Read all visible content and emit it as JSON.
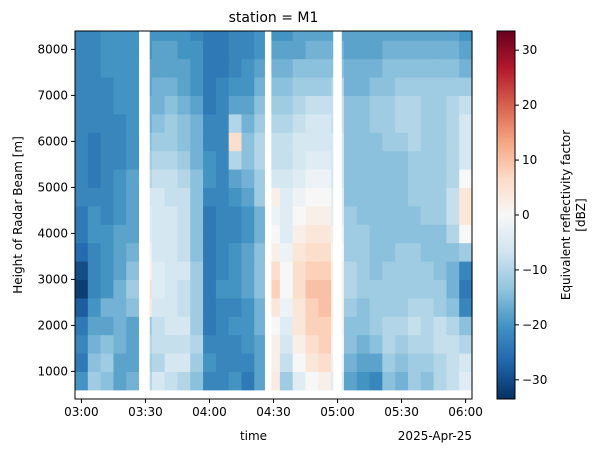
{
  "chart_data": {
    "type": "heatmap",
    "title": "station = M1",
    "xlabel": "time",
    "ylabel": "Height of Radar Beam [m]",
    "x_offset_label": "2025-Apr-25",
    "x_ticks": [
      "03:00",
      "03:30",
      "04:00",
      "04:30",
      "05:00",
      "05:30",
      "06:00"
    ],
    "x_tick_minutes": [
      0,
      30,
      60,
      90,
      120,
      150,
      180
    ],
    "xlim_minutes": [
      -3,
      183
    ],
    "y_ticks": [
      1000,
      2000,
      3000,
      4000,
      5000,
      6000,
      7000,
      8000
    ],
    "ylim": [
      400,
      8400
    ],
    "colorbar": {
      "label_line1": "Equivalent reflectivity factor",
      "label_line2": "[dBZ]",
      "range": [
        -33.5,
        33.5
      ],
      "ticks": [
        -30,
        -20,
        -10,
        0,
        10,
        20,
        30
      ],
      "cmap": [
        "#053061",
        "#2166ac",
        "#4393c3",
        "#92c5de",
        "#d1e5f0",
        "#f7f7f7",
        "#fddbc7",
        "#f4a582",
        "#d6604d",
        "#b2182b",
        "#67001f"
      ]
    },
    "time_minutes": [
      0,
      6,
      12,
      18,
      24,
      30,
      36,
      42,
      48,
      54,
      60,
      66,
      72,
      78,
      84,
      90,
      96,
      102,
      108,
      114,
      120,
      126,
      132,
      138,
      144,
      150,
      156,
      162,
      168,
      174,
      180
    ],
    "heights_m": [
      800,
      1200,
      1600,
      2000,
      2400,
      2800,
      3200,
      3600,
      4000,
      4400,
      4800,
      5200,
      5600,
      6000,
      6400,
      6800,
      7200,
      7600,
      8000,
      8400
    ],
    "gaps": [
      {
        "from_minute": 27,
        "to_minute": 32
      },
      {
        "from_minute": 86,
        "to_minute": 89
      },
      {
        "from_minute": 118,
        "to_minute": 122
      }
    ],
    "dbz_grid": [
      [
        -20,
        -12,
        -14,
        -18,
        -16,
        -10,
        -6,
        -8,
        -10,
        -14,
        -22,
        -22,
        -20,
        -24,
        -18,
        3,
        -12,
        -4,
        0,
        2,
        -4,
        -18,
        -20,
        -22,
        -14,
        -16,
        -12,
        -14,
        -10,
        -8,
        -4
      ],
      [
        -24,
        -14,
        -12,
        -18,
        -18,
        -12,
        -10,
        -6,
        -6,
        -12,
        -20,
        -22,
        -22,
        -22,
        -18,
        2,
        -8,
        0,
        4,
        6,
        -2,
        -16,
        -18,
        -18,
        -12,
        -14,
        -12,
        -12,
        -10,
        -8,
        -6
      ],
      [
        -22,
        -16,
        -14,
        -16,
        -18,
        -10,
        -8,
        -8,
        -8,
        -10,
        -22,
        -22,
        -22,
        -20,
        -18,
        2,
        -6,
        2,
        6,
        8,
        0,
        -14,
        -16,
        -14,
        -10,
        -12,
        -10,
        -10,
        -8,
        -8,
        -10
      ],
      [
        -24,
        -18,
        -18,
        -16,
        -18,
        -12,
        -8,
        -6,
        -6,
        -12,
        -24,
        -22,
        -20,
        -20,
        -16,
        0,
        -4,
        4,
        8,
        8,
        2,
        -14,
        -14,
        -12,
        -10,
        -10,
        -8,
        -10,
        -8,
        -10,
        -14
      ],
      [
        -28,
        -20,
        -16,
        -16,
        -14,
        4,
        -6,
        -6,
        -8,
        -12,
        -24,
        -22,
        -22,
        -20,
        -16,
        4,
        -2,
        4,
        8,
        10,
        2,
        -12,
        -14,
        -12,
        -12,
        -12,
        -10,
        -10,
        -12,
        -14,
        -22
      ],
      [
        -32,
        -22,
        -20,
        -16,
        -12,
        6,
        -4,
        -6,
        -8,
        -12,
        -24,
        -20,
        -20,
        -18,
        -14,
        8,
        0,
        6,
        10,
        10,
        2,
        -10,
        -12,
        -12,
        -12,
        -12,
        -12,
        -12,
        -12,
        -16,
        -24
      ],
      [
        -30,
        -22,
        -20,
        -18,
        -14,
        2,
        -4,
        -6,
        -6,
        -12,
        -24,
        -22,
        -20,
        -18,
        -14,
        6,
        0,
        6,
        8,
        8,
        2,
        -10,
        -12,
        -14,
        -12,
        -12,
        -12,
        -12,
        -14,
        -16,
        -22
      ],
      [
        -26,
        -22,
        -20,
        -18,
        -16,
        -2,
        -6,
        -6,
        -8,
        -14,
        -24,
        -22,
        -20,
        -18,
        -14,
        2,
        -2,
        4,
        6,
        6,
        0,
        -12,
        -12,
        -14,
        -14,
        -12,
        -12,
        -14,
        -14,
        -14,
        -12
      ],
      [
        -24,
        -20,
        -20,
        -18,
        -18,
        -4,
        -6,
        -6,
        -8,
        -14,
        -24,
        -22,
        -22,
        -20,
        -16,
        0,
        -4,
        2,
        4,
        4,
        -2,
        -12,
        -12,
        -14,
        -14,
        -14,
        -14,
        -14,
        -14,
        -10,
        0
      ],
      [
        -24,
        -20,
        -22,
        -20,
        -18,
        -4,
        -6,
        -6,
        -8,
        -14,
        -24,
        -22,
        -22,
        -20,
        -16,
        -2,
        -4,
        0,
        2,
        2,
        -4,
        -12,
        -14,
        -14,
        -14,
        -14,
        -14,
        -12,
        -12,
        -8,
        4
      ],
      [
        -22,
        -22,
        -22,
        -20,
        -18,
        -6,
        -6,
        -8,
        -8,
        -14,
        -22,
        -22,
        -20,
        -18,
        -12,
        2,
        -4,
        -2,
        0,
        0,
        -4,
        -14,
        -14,
        -14,
        -14,
        -14,
        -12,
        -12,
        -12,
        -8,
        4
      ],
      [
        -22,
        -24,
        -22,
        -20,
        -18,
        -10,
        -8,
        -8,
        -10,
        -14,
        -20,
        -22,
        -18,
        -16,
        -12,
        -6,
        -6,
        -4,
        -2,
        -2,
        -6,
        -14,
        -14,
        -14,
        -14,
        -14,
        -12,
        -12,
        -12,
        -10,
        0
      ],
      [
        -22,
        -24,
        -22,
        -22,
        -20,
        -12,
        -10,
        -10,
        -12,
        -16,
        -20,
        -22,
        -10,
        -14,
        -10,
        -8,
        -8,
        -6,
        -4,
        -4,
        -6,
        -14,
        -14,
        -14,
        -14,
        -14,
        -12,
        -12,
        -12,
        -10,
        -6
      ],
      [
        -22,
        -24,
        -22,
        -22,
        -20,
        -14,
        -12,
        -12,
        -14,
        -16,
        -22,
        -22,
        6,
        -14,
        -10,
        -8,
        -8,
        -6,
        -6,
        -6,
        -6,
        -14,
        -14,
        -14,
        -12,
        -12,
        -10,
        -12,
        -12,
        -10,
        -6
      ],
      [
        -22,
        -22,
        -22,
        -22,
        -20,
        -16,
        -14,
        -12,
        -14,
        -16,
        -22,
        -22,
        -10,
        -16,
        -12,
        -10,
        -10,
        -8,
        -6,
        -6,
        -8,
        -14,
        -14,
        -12,
        -12,
        -10,
        -10,
        -12,
        -12,
        -10,
        -6
      ],
      [
        -22,
        -22,
        -22,
        -20,
        -20,
        -16,
        -16,
        -14,
        -16,
        -18,
        -24,
        -22,
        -18,
        -18,
        -14,
        -12,
        -12,
        -10,
        -8,
        -8,
        -8,
        -14,
        -14,
        -12,
        -12,
        -10,
        -10,
        -12,
        -12,
        -10,
        -8
      ],
      [
        -22,
        -22,
        -22,
        -20,
        -20,
        -18,
        -16,
        -16,
        -18,
        -20,
        -24,
        -22,
        -20,
        -20,
        -16,
        -14,
        -14,
        -12,
        -12,
        -12,
        -10,
        -16,
        -16,
        -14,
        -14,
        -12,
        -12,
        -12,
        -12,
        -12,
        -12
      ],
      [
        -22,
        -22,
        -20,
        -20,
        -20,
        -18,
        -18,
        -18,
        -18,
        -20,
        -24,
        -24,
        -22,
        -20,
        -18,
        -16,
        -16,
        -14,
        -14,
        -14,
        -14,
        -16,
        -16,
        -16,
        -14,
        -14,
        -14,
        -14,
        -14,
        -14,
        -16
      ],
      [
        -22,
        -22,
        -20,
        -20,
        -20,
        -20,
        -18,
        -18,
        -20,
        -20,
        -24,
        -24,
        -22,
        -22,
        -20,
        -18,
        -18,
        -18,
        -16,
        -16,
        -16,
        -18,
        -18,
        -18,
        -16,
        -16,
        -16,
        -16,
        -16,
        -16,
        -18
      ],
      [
        -22,
        -22,
        -20,
        -20,
        -20,
        -20,
        -20,
        -20,
        -20,
        -22,
        -24,
        -24,
        -22,
        -22,
        -20,
        -20,
        -20,
        -18,
        -18,
        -18,
        -18,
        -18,
        -18,
        -18,
        -18,
        -18,
        -18,
        -18,
        -18,
        -18,
        -20
      ]
    ]
  }
}
